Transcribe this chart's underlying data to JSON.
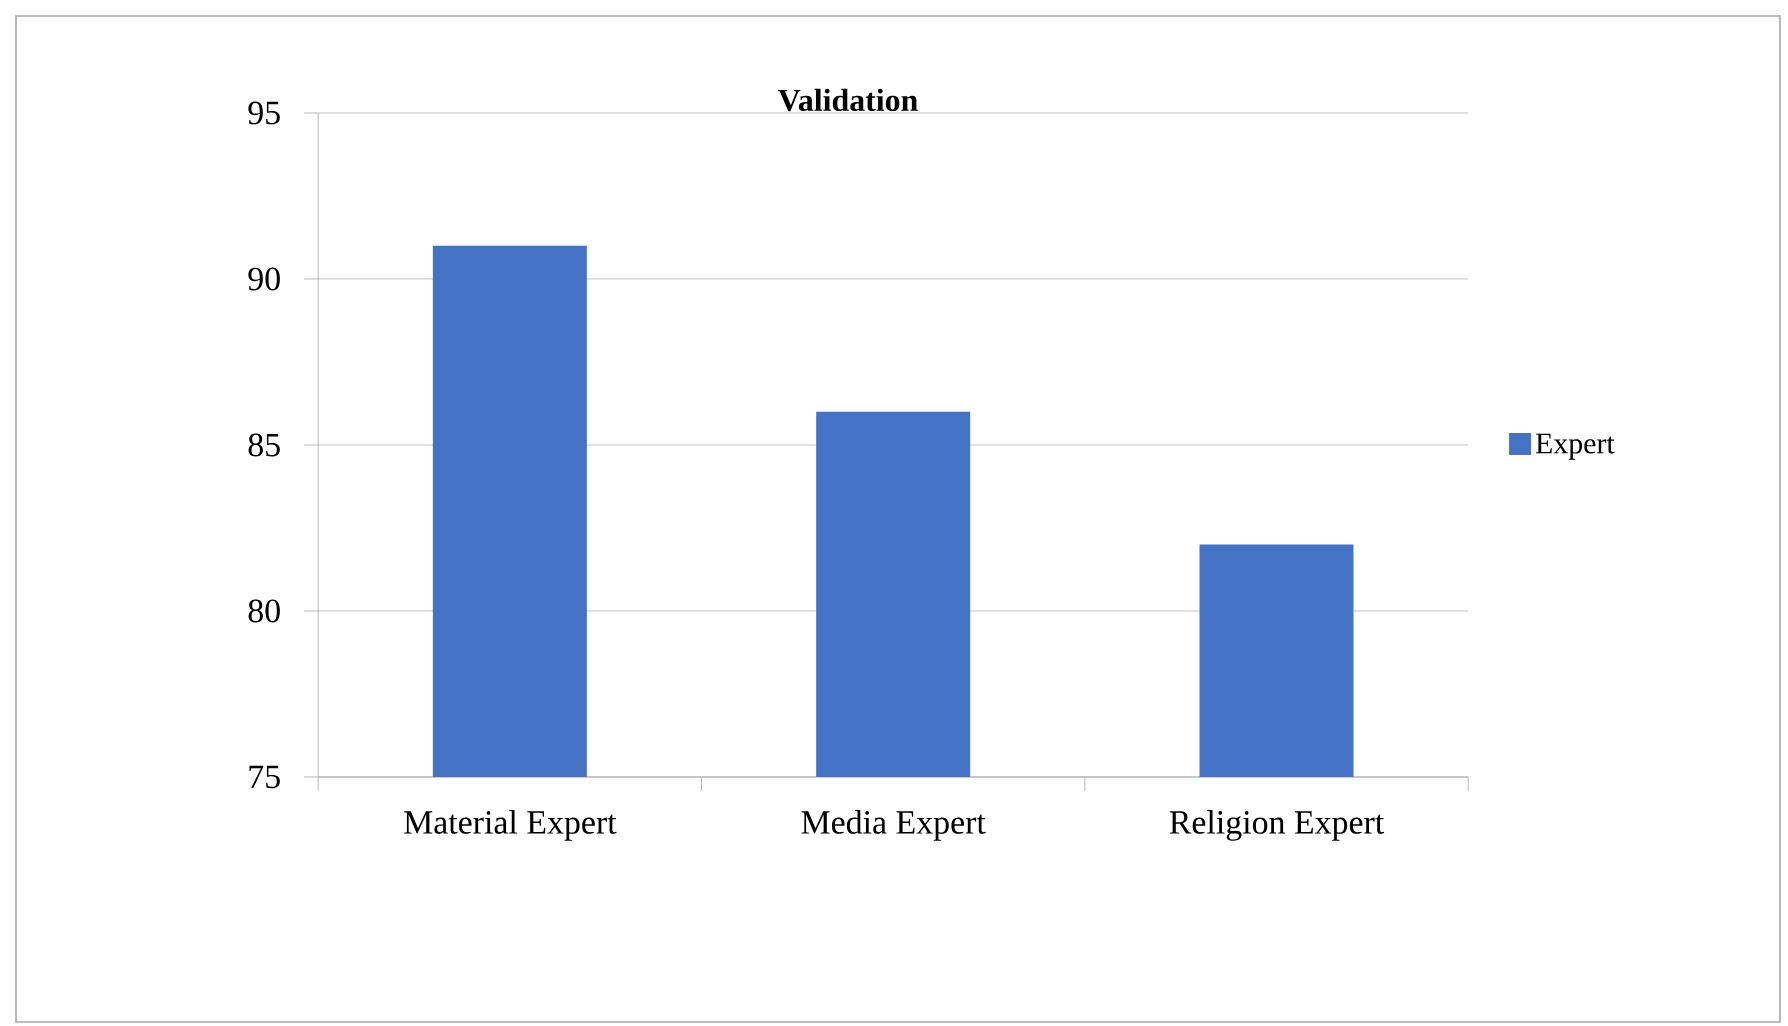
{
  "chart_data": {
    "type": "bar",
    "title": "Validation",
    "categories": [
      "Material Expert",
      "Media Expert",
      "Religion Expert"
    ],
    "series": [
      {
        "name": "Expert",
        "color": "#4472c4",
        "values": [
          91,
          86,
          82
        ]
      }
    ],
    "ylim": [
      75,
      95
    ],
    "yticks": [
      75,
      80,
      85,
      90,
      95
    ],
    "grid": "y",
    "legend": "right"
  }
}
